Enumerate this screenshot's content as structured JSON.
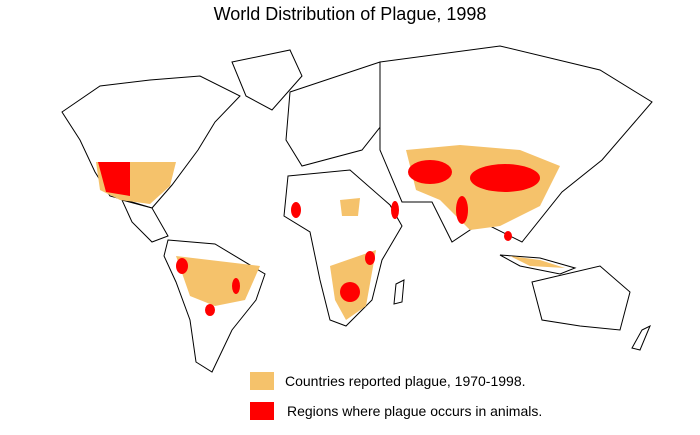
{
  "title": "World Distribution of Plague, 1998",
  "legend": [
    {
      "label": "Countries reported plague, 1970-1998.",
      "color": "#f5c26b"
    },
    {
      "label": "Regions where plague occurs in animals.",
      "color": "#ff0000"
    }
  ]
}
